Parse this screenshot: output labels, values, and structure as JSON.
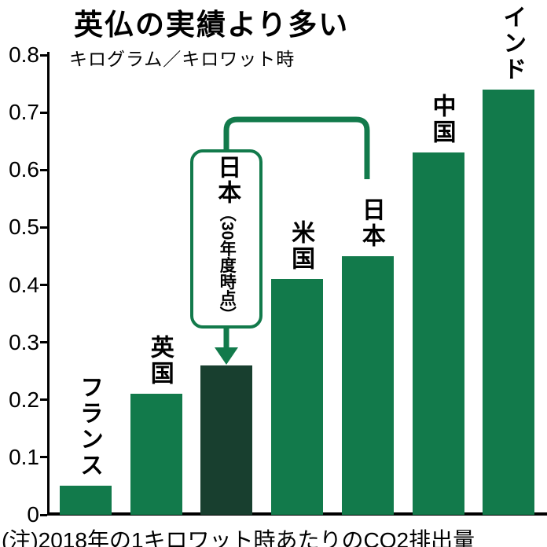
{
  "colors": {
    "bar": "#127a4b",
    "highlight_bar": "#183f2f",
    "axis": "#000000",
    "background": "#ffffff"
  },
  "chart_data": {
    "type": "bar",
    "title": "英仏の実績より多い",
    "unit_label": "キログラム／キロワット時",
    "categories": [
      "フランス",
      "英国",
      "日本（30年度時点）",
      "米国",
      "日本",
      "中国",
      "インド"
    ],
    "values": [
      0.05,
      0.21,
      0.26,
      0.41,
      0.45,
      0.63,
      0.74
    ],
    "ylim": [
      0,
      0.8
    ],
    "yticks": [
      0,
      0.1,
      0.2,
      0.3,
      0.4,
      0.5,
      0.6,
      0.7,
      0.8
    ],
    "grid": false,
    "legend": "none",
    "note": "(注)2018年の1キロワット時あたりのCO2排出量",
    "annotation": {
      "label_main": "日本",
      "label_sub": "（30年度時点）",
      "target_category": "日本（30年度時点）",
      "target_index": 2,
      "connector_from_category": "日本",
      "connector_from_index": 4
    }
  }
}
